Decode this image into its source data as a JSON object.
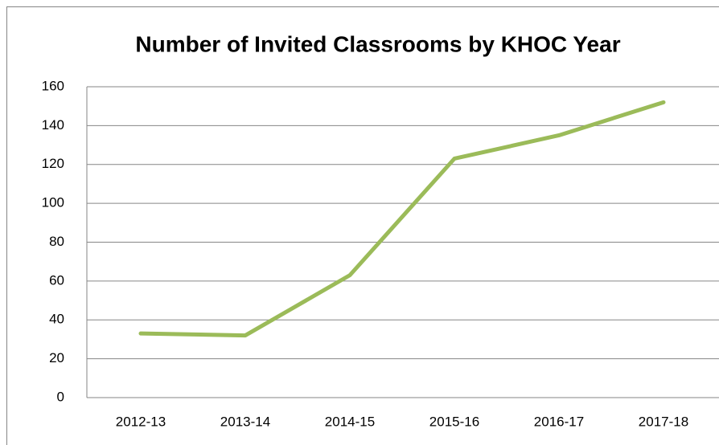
{
  "chart_data": {
    "type": "line",
    "title": "Number of Invited Classrooms by KHOC Year",
    "categories": [
      "2012-13",
      "2013-14",
      "2014-15",
      "2015-16",
      "2016-17",
      "2017-18"
    ],
    "values": [
      33,
      32,
      63,
      123,
      135,
      152
    ],
    "color": "#9bbb59",
    "ylim": [
      0,
      160
    ],
    "yticks": [
      0,
      20,
      40,
      60,
      80,
      100,
      120,
      140,
      160
    ],
    "grid": true
  }
}
